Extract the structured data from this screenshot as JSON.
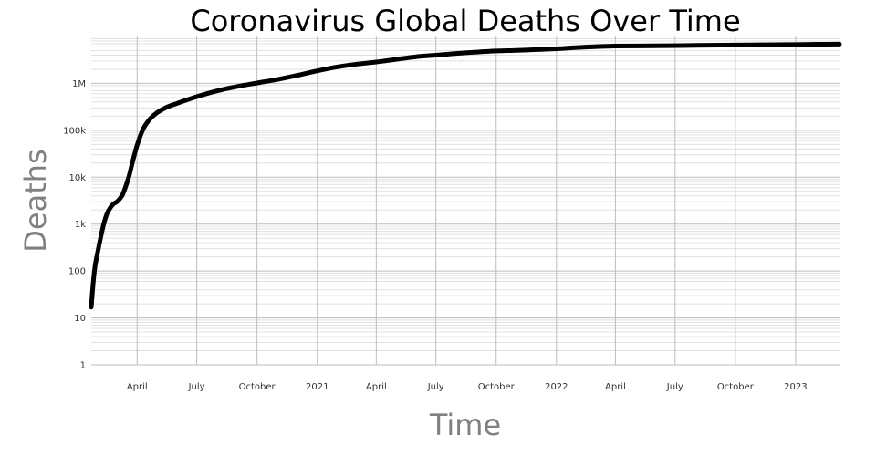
{
  "chart_data": {
    "type": "line",
    "title": "Coronavirus Global Deaths Over Time",
    "xlabel": "Time",
    "ylabel": "Deaths",
    "y_scale": "log",
    "ylim": [
      1,
      10000000
    ],
    "xlim": [
      "2020-01-22",
      "2023-03-09"
    ],
    "grid": true,
    "legend": "none",
    "colors": {
      "line": "#000000",
      "major_grid": "#bdbdbd",
      "minor_grid": "#e0e0e0",
      "axis_title": "#808080"
    },
    "y_ticks": [
      {
        "value": 1,
        "label": "1"
      },
      {
        "value": 10,
        "label": "10"
      },
      {
        "value": 100,
        "label": "100"
      },
      {
        "value": 1000,
        "label": "1k"
      },
      {
        "value": 10000,
        "label": "10k"
      },
      {
        "value": 100000,
        "label": "100k"
      },
      {
        "value": 1000000,
        "label": "1M"
      }
    ],
    "x_ticks": [
      {
        "date": "2020-04-01",
        "label": "April"
      },
      {
        "date": "2020-07-01",
        "label": "July"
      },
      {
        "date": "2020-10-01",
        "label": "October"
      },
      {
        "date": "2021-01-01",
        "label": "2021"
      },
      {
        "date": "2021-04-01",
        "label": "April"
      },
      {
        "date": "2021-07-01",
        "label": "July"
      },
      {
        "date": "2021-10-01",
        "label": "October"
      },
      {
        "date": "2022-01-01",
        "label": "2022"
      },
      {
        "date": "2022-04-01",
        "label": "April"
      },
      {
        "date": "2022-07-01",
        "label": "July"
      },
      {
        "date": "2022-10-01",
        "label": "October"
      },
      {
        "date": "2023-01-01",
        "label": "2023"
      }
    ],
    "series": [
      {
        "x": [
          "2020-01-22",
          "2020-01-25",
          "2020-01-28",
          "2020-02-01",
          "2020-02-05",
          "2020-02-10",
          "2020-02-15",
          "2020-02-20",
          "2020-02-25",
          "2020-03-01",
          "2020-03-05",
          "2020-03-10",
          "2020-03-15",
          "2020-03-20",
          "2020-03-25",
          "2020-04-01",
          "2020-04-10",
          "2020-04-20",
          "2020-05-01",
          "2020-05-15",
          "2020-06-01",
          "2020-07-01",
          "2020-08-01",
          "2020-09-01",
          "2020-10-01",
          "2020-11-01",
          "2020-12-01",
          "2021-01-01",
          "2021-02-01",
          "2021-03-01",
          "2021-04-01",
          "2021-05-01",
          "2021-06-01",
          "2021-07-01",
          "2021-08-01",
          "2021-09-01",
          "2021-10-01",
          "2021-11-01",
          "2021-12-01",
          "2022-01-01",
          "2022-02-01",
          "2022-03-01",
          "2022-04-01",
          "2022-06-01",
          "2022-08-01",
          "2022-10-01",
          "2022-12-01",
          "2023-01-01",
          "2023-02-01",
          "2023-03-09"
        ],
        "y": [
          17,
          56,
          132,
          259,
          490,
          1000,
          1660,
          2230,
          2700,
          2980,
          3400,
          4300,
          6600,
          11000,
          21000,
          48000,
          105000,
          170000,
          235000,
          305000,
          375000,
          520000,
          690000,
          860000,
          1020000,
          1210000,
          1480000,
          1850000,
          2250000,
          2560000,
          2850000,
          3250000,
          3700000,
          4000000,
          4350000,
          4650000,
          4900000,
          5050000,
          5250000,
          5450000,
          5800000,
          6050000,
          6250000,
          6320000,
          6450000,
          6580000,
          6680000,
          6720000,
          6820000,
          6880000
        ]
      }
    ]
  }
}
